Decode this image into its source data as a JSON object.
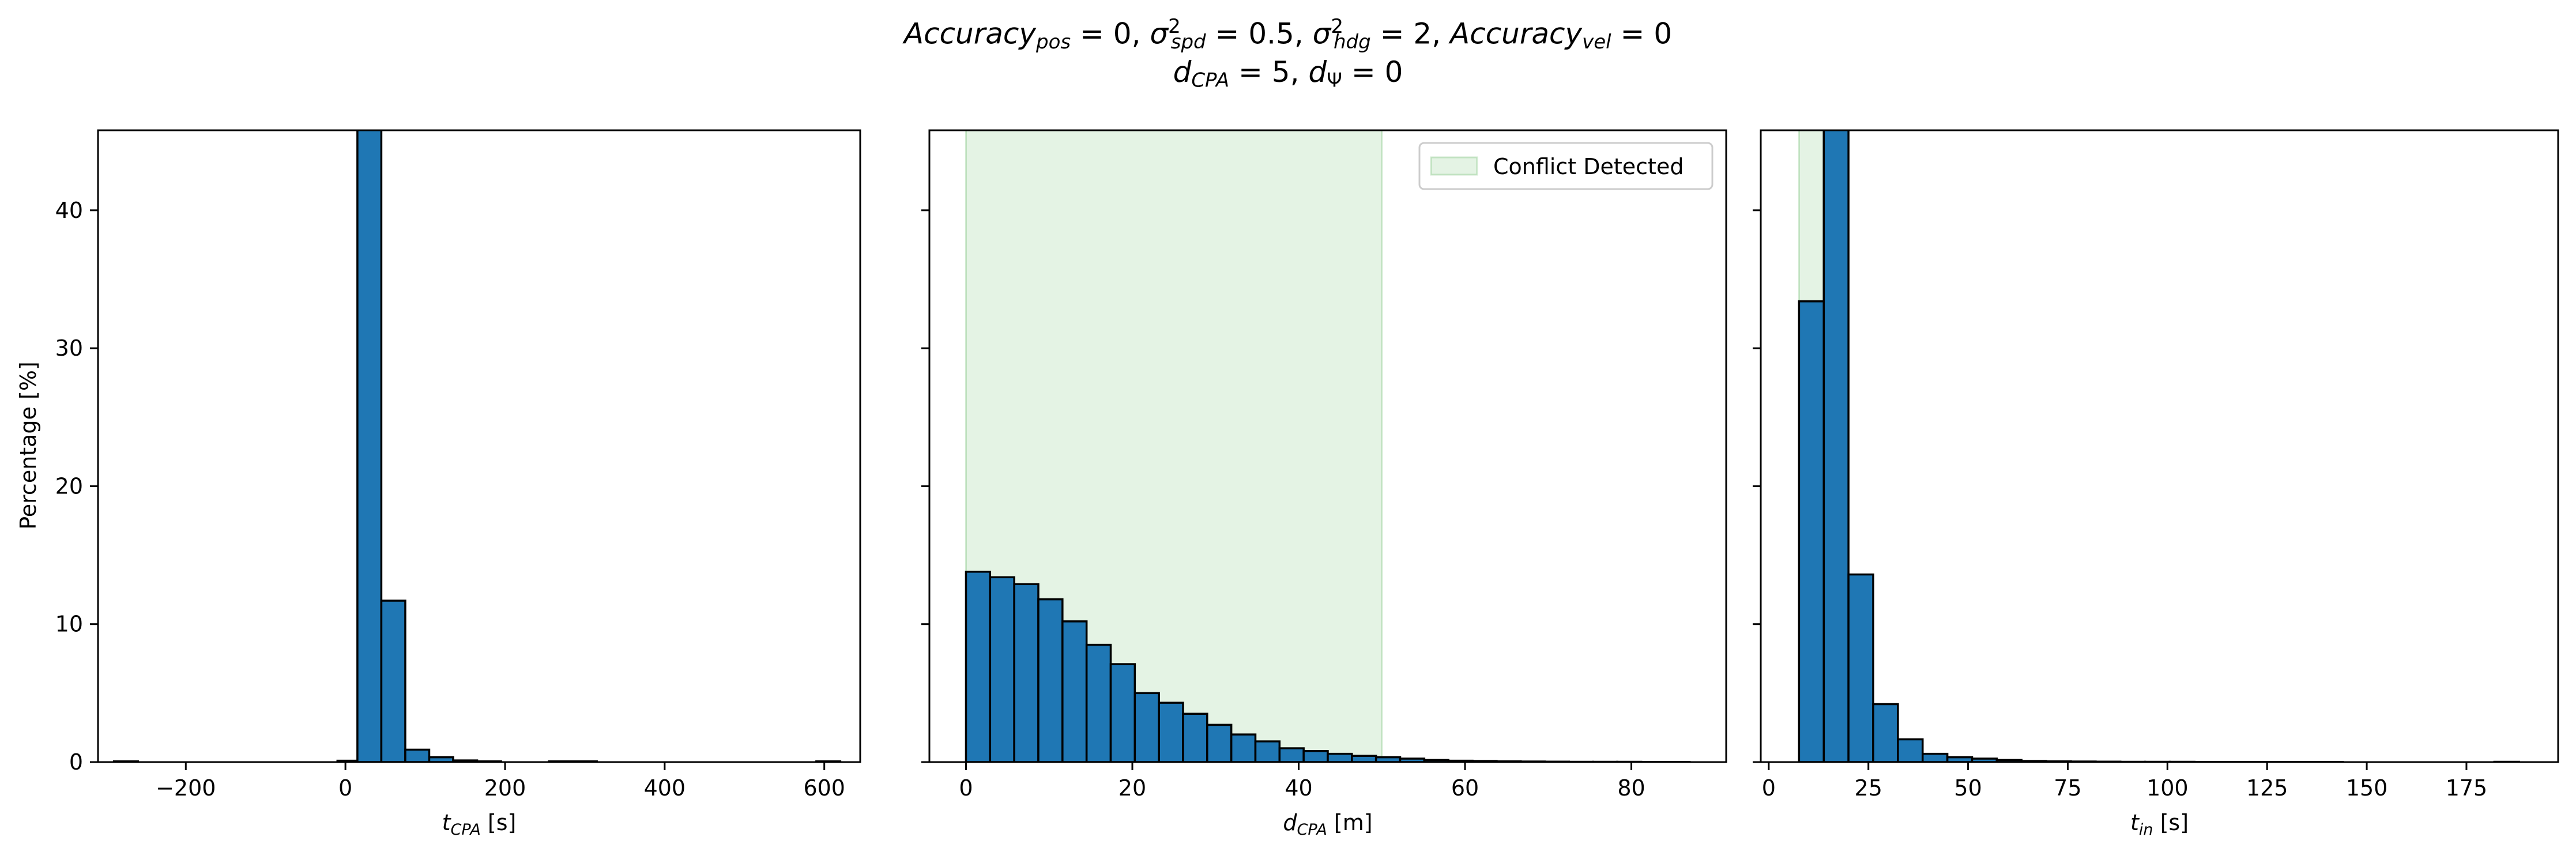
{
  "figure_title": {
    "acc_pos_label": "Accuracy",
    "acc_pos_sub": "pos",
    "acc_pos_value": " = 0, ",
    "sigma_spd_sub": "spd",
    "sigma_spd_value": " = 0.5, ",
    "sigma_hdg_sub": "hdg",
    "sigma_hdg_value": " = 2, ",
    "acc_vel_label": "Accuracy",
    "acc_vel_sub": "vel",
    "acc_vel_value": " = 0",
    "dcpa_sub": "CPA",
    "dcpa_value": " = 5, ",
    "dpsi_value": " = 0"
  },
  "colors": {
    "bar_fill": "#1f77b4",
    "bar_edge": "#000000",
    "conflict_fill": "#2ca02c"
  },
  "chart_data": [
    {
      "type": "bar",
      "subtype": "histogram",
      "xlabel": "t_CPA [s]",
      "xlabel_main": "t",
      "xlabel_sub": "CPA",
      "xlabel_unit": " [s]",
      "ylabel": "Percentage [%]",
      "xlim": [
        -310,
        645
      ],
      "ylim": [
        0,
        45.8
      ],
      "xticks": [
        -200,
        0,
        200,
        400,
        600
      ],
      "xtick_labels": [
        "−200",
        "0",
        "200",
        "400",
        "600"
      ],
      "yticks": [
        0,
        10,
        20,
        30,
        40
      ],
      "ytick_labels": [
        "0",
        "10",
        "20",
        "30",
        "40"
      ],
      "bins": [
        {
          "x0": -290,
          "x1": -260,
          "value": 0.05
        },
        {
          "x0": -10,
          "x1": 15,
          "value": 0.1
        },
        {
          "x0": 15,
          "x1": 45,
          "value": 46.0
        },
        {
          "x0": 45,
          "x1": 75,
          "value": 11.7
        },
        {
          "x0": 75,
          "x1": 105,
          "value": 0.9
        },
        {
          "x0": 105,
          "x1": 135,
          "value": 0.35
        },
        {
          "x0": 135,
          "x1": 165,
          "value": 0.12
        },
        {
          "x0": 165,
          "x1": 195,
          "value": 0.05
        },
        {
          "x0": 255,
          "x1": 315,
          "value": 0.05
        },
        {
          "x0": 590,
          "x1": 620,
          "value": 0.05
        }
      ]
    },
    {
      "type": "bar",
      "subtype": "histogram",
      "xlabel": "d_CPA [m]",
      "xlabel_main": "d",
      "xlabel_sub": "CPA",
      "xlabel_unit": " [m]",
      "xlim": [
        -4.4,
        91.4
      ],
      "ylim": [
        0,
        45.8
      ],
      "xticks": [
        0,
        20,
        40,
        60,
        80
      ],
      "xtick_labels": [
        "0",
        "20",
        "40",
        "60",
        "80"
      ],
      "yticks": [
        0,
        10,
        20,
        30,
        40
      ],
      "shaded_region": {
        "x0": 0,
        "x1": 50
      },
      "legend": {
        "label": "Conflict Detected",
        "placement": "top-right"
      },
      "bins": [
        {
          "x0": 0,
          "x1": 2.9,
          "value": 13.8
        },
        {
          "x0": 2.9,
          "x1": 5.8,
          "value": 13.4
        },
        {
          "x0": 5.8,
          "x1": 8.7,
          "value": 12.9
        },
        {
          "x0": 8.7,
          "x1": 11.6,
          "value": 11.8
        },
        {
          "x0": 11.6,
          "x1": 14.5,
          "value": 10.2
        },
        {
          "x0": 14.5,
          "x1": 17.4,
          "value": 8.5
        },
        {
          "x0": 17.4,
          "x1": 20.3,
          "value": 7.1
        },
        {
          "x0": 20.3,
          "x1": 23.2,
          "value": 5.0
        },
        {
          "x0": 23.2,
          "x1": 26.1,
          "value": 4.3
        },
        {
          "x0": 26.1,
          "x1": 29.0,
          "value": 3.5
        },
        {
          "x0": 29.0,
          "x1": 31.9,
          "value": 2.7
        },
        {
          "x0": 31.9,
          "x1": 34.8,
          "value": 2.0
        },
        {
          "x0": 34.8,
          "x1": 37.7,
          "value": 1.5
        },
        {
          "x0": 37.7,
          "x1": 40.6,
          "value": 1.0
        },
        {
          "x0": 40.6,
          "x1": 43.5,
          "value": 0.8
        },
        {
          "x0": 43.5,
          "x1": 46.4,
          "value": 0.6
        },
        {
          "x0": 46.4,
          "x1": 49.3,
          "value": 0.45
        },
        {
          "x0": 49.3,
          "x1": 52.2,
          "value": 0.35
        },
        {
          "x0": 52.2,
          "x1": 55.1,
          "value": 0.25
        },
        {
          "x0": 55.1,
          "x1": 58.0,
          "value": 0.15
        },
        {
          "x0": 58.0,
          "x1": 60.9,
          "value": 0.1
        },
        {
          "x0": 60.9,
          "x1": 63.8,
          "value": 0.08
        },
        {
          "x0": 63.8,
          "x1": 66.7,
          "value": 0.05
        },
        {
          "x0": 66.7,
          "x1": 69.6,
          "value": 0.04
        },
        {
          "x0": 69.6,
          "x1": 72.5,
          "value": 0.03
        },
        {
          "x0": 72.5,
          "x1": 75.4,
          "value": 0.02
        },
        {
          "x0": 75.4,
          "x1": 78.3,
          "value": 0.02
        },
        {
          "x0": 78.3,
          "x1": 81.2,
          "value": 0.02
        },
        {
          "x0": 81.2,
          "x1": 84.1,
          "value": 0.01
        },
        {
          "x0": 84.1,
          "x1": 87.0,
          "value": 0.01
        }
      ]
    },
    {
      "type": "bar",
      "subtype": "histogram",
      "xlabel": "t_in [s]",
      "xlabel_main": "t",
      "xlabel_sub": "in",
      "xlabel_unit": " [s]",
      "xlim": [
        -2,
        198
      ],
      "ylim": [
        0,
        45.8
      ],
      "xticks": [
        0,
        25,
        50,
        75,
        100,
        125,
        150,
        175
      ],
      "xtick_labels": [
        "0",
        "25",
        "50",
        "75",
        "100",
        "125",
        "150",
        "175"
      ],
      "yticks": [
        0,
        10,
        20,
        30,
        40
      ],
      "shaded_region": {
        "x0": 7.6,
        "x1": 20
      },
      "bins": [
        {
          "x0": 7.6,
          "x1": 13.8,
          "value": 33.4
        },
        {
          "x0": 13.8,
          "x1": 20.0,
          "value": 46.0
        },
        {
          "x0": 20.0,
          "x1": 26.2,
          "value": 13.6
        },
        {
          "x0": 26.2,
          "x1": 32.4,
          "value": 4.2
        },
        {
          "x0": 32.4,
          "x1": 38.6,
          "value": 1.65
        },
        {
          "x0": 38.6,
          "x1": 44.8,
          "value": 0.6
        },
        {
          "x0": 44.8,
          "x1": 51.0,
          "value": 0.35
        },
        {
          "x0": 51.0,
          "x1": 57.2,
          "value": 0.25
        },
        {
          "x0": 57.2,
          "x1": 63.4,
          "value": 0.15
        },
        {
          "x0": 63.4,
          "x1": 69.6,
          "value": 0.08
        },
        {
          "x0": 69.6,
          "x1": 75.8,
          "value": 0.05
        },
        {
          "x0": 75.8,
          "x1": 82.0,
          "value": 0.04
        },
        {
          "x0": 82.0,
          "x1": 88.2,
          "value": 0.03
        },
        {
          "x0": 88.2,
          "x1": 94.4,
          "value": 0.02
        },
        {
          "x0": 94.4,
          "x1": 100.6,
          "value": 0.02
        },
        {
          "x0": 100.6,
          "x1": 106.8,
          "value": 0.02
        },
        {
          "x0": 106.8,
          "x1": 113.0,
          "value": 0.01
        },
        {
          "x0": 113.0,
          "x1": 119.2,
          "value": 0.01
        },
        {
          "x0": 119.2,
          "x1": 125.4,
          "value": 0.01
        },
        {
          "x0": 125.4,
          "x1": 131.6,
          "value": 0.01
        },
        {
          "x0": 131.6,
          "x1": 137.8,
          "value": 0.01
        },
        {
          "x0": 137.8,
          "x1": 144.0,
          "value": 0.01
        },
        {
          "x0": 182.0,
          "x1": 188.2,
          "value": 0.02
        }
      ]
    }
  ]
}
